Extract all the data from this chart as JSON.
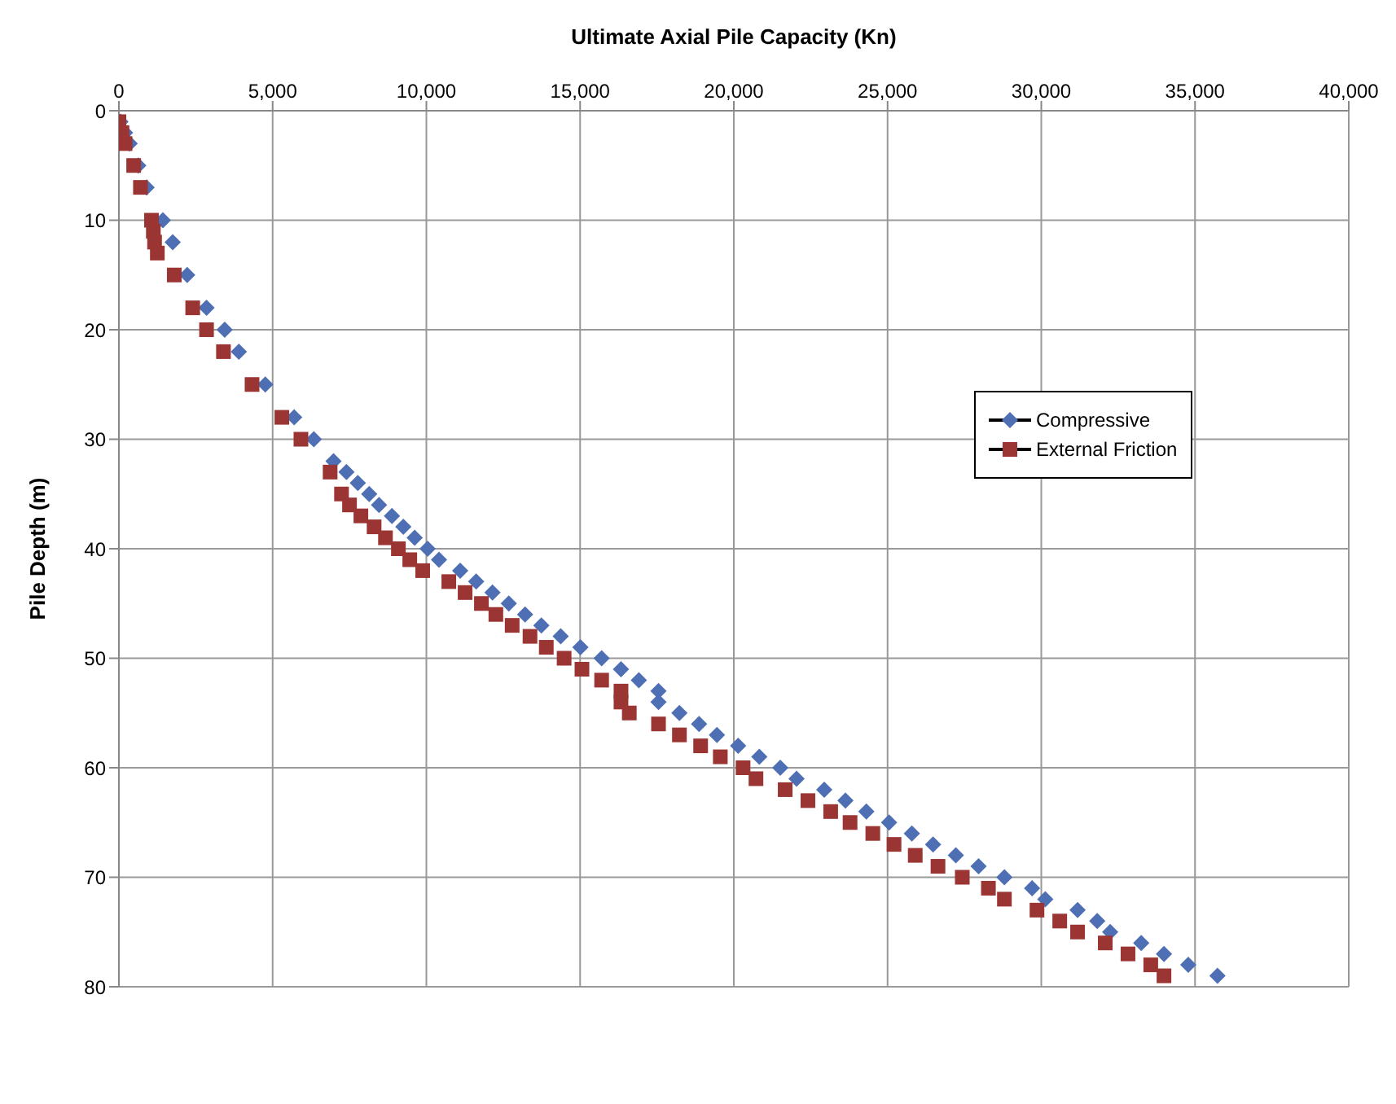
{
  "chart_data": {
    "type": "scatter",
    "xlabel": "Ultimate Axial Pile Capacity (Kn)",
    "ylabel": "Pile Depth (m)",
    "xlim": [
      0,
      40000
    ],
    "xticks": [
      0,
      {
        "value": 5000,
        "label": "5,000"
      },
      {
        "value": 10000,
        "label": "10,000"
      },
      {
        "value": 15000,
        "label": "15,000"
      },
      {
        "value": 20000,
        "label": "20,000"
      },
      {
        "value": 25000,
        "label": "25,000"
      },
      {
        "value": 30000,
        "label": "30,000"
      },
      {
        "value": 35000,
        "label": "35,000"
      },
      {
        "value": 40000,
        "label": "40,000"
      }
    ],
    "ylim": [
      80,
      0
    ],
    "yticks": [
      0,
      10,
      20,
      30,
      40,
      50,
      60,
      70,
      80
    ],
    "grid": true,
    "legend": "right",
    "series": [
      {
        "name": "Compressive",
        "color": "#4f6fb5",
        "marker": "diamond",
        "x": [
          50,
          200,
          350,
          630,
          900,
          1430,
          1750,
          2220,
          2850,
          3440,
          3900,
          4760,
          5700,
          6340,
          6980,
          7400,
          7770,
          8140,
          8460,
          8880,
          9250,
          9620,
          10040,
          10410,
          11100,
          11620,
          12150,
          12680,
          13210,
          13740,
          14370,
          15010,
          15700,
          16330,
          16910,
          17550,
          17550,
          18230,
          18870,
          19450,
          20140,
          20830,
          21510,
          22040,
          22940,
          23630,
          24310,
          25050,
          25790,
          26480,
          27220,
          27960,
          28800,
          29700,
          30130,
          31180,
          31820,
          32240,
          33250,
          33990,
          34780,
          35730
        ],
        "values": [
          1,
          2,
          3,
          5,
          7,
          10,
          12,
          15,
          18,
          20,
          22,
          25,
          28,
          30,
          32,
          33,
          34,
          35,
          36,
          37,
          38,
          39,
          40,
          41,
          42,
          43,
          44,
          45,
          46,
          47,
          48,
          49,
          50,
          51,
          52,
          53,
          54,
          55,
          56,
          57,
          58,
          59,
          60,
          61,
          62,
          63,
          64,
          65,
          66,
          67,
          68,
          69,
          70,
          71,
          72,
          73,
          74,
          75,
          76,
          77,
          78,
          79
        ]
      },
      {
        "name": "External Friction",
        "color": "#9b3533",
        "marker": "square",
        "x": [
          0,
          100,
          200,
          480,
          700,
          1060,
          1120,
          1160,
          1250,
          1800,
          2400,
          2850,
          3400,
          4330,
          5300,
          5920,
          6870,
          7240,
          7500,
          7870,
          8300,
          8670,
          9090,
          9460,
          9880,
          10730,
          11260,
          11790,
          12260,
          12790,
          13370,
          13900,
          14480,
          15060,
          15700,
          16330,
          16330,
          16600,
          17550,
          18230,
          18920,
          19560,
          20300,
          20720,
          21670,
          22410,
          23150,
          23780,
          24520,
          25210,
          25900,
          26640,
          27430,
          28280,
          28800,
          29860,
          30600,
          31180,
          32080,
          32820,
          33560,
          33990
        ],
        "values": [
          1,
          2,
          3,
          5,
          7,
          10,
          11,
          12,
          13,
          15,
          18,
          20,
          22,
          25,
          28,
          30,
          33,
          35,
          36,
          37,
          38,
          39,
          40,
          41,
          42,
          43,
          44,
          45,
          46,
          47,
          48,
          49,
          50,
          51,
          52,
          53,
          54,
          55,
          56,
          57,
          58,
          59,
          60,
          61,
          62,
          63,
          64,
          65,
          66,
          67,
          68,
          69,
          70,
          71,
          72,
          73,
          74,
          75,
          76,
          77,
          78,
          79
        ]
      }
    ]
  }
}
